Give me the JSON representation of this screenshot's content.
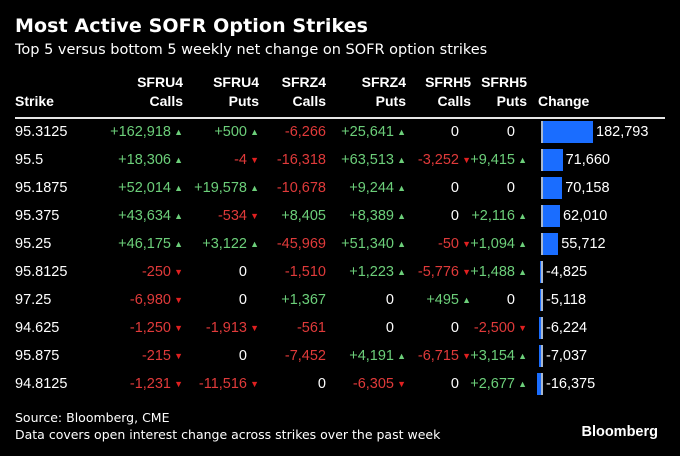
{
  "chart_data": {
    "type": "table",
    "title": "Most Active SOFR Option Strikes",
    "subtitle": "Top 5 versus bottom 5 weekly net change on SOFR option strikes",
    "columns": [
      {
        "top": "",
        "bottom": "Strike"
      },
      {
        "top": "SFRU4",
        "bottom": "Calls"
      },
      {
        "top": "SFRU4",
        "bottom": "Puts"
      },
      {
        "top": "SFRZ4",
        "bottom": "Calls"
      },
      {
        "top": "SFRZ4",
        "bottom": "Puts"
      },
      {
        "top": "SFRH5",
        "bottom": "Calls"
      },
      {
        "top": "SFRH5",
        "bottom": "Puts"
      },
      {
        "top": "",
        "bottom": "Change"
      }
    ],
    "rows": [
      {
        "strike": "95.3125",
        "values": [
          "+162,918",
          "+500",
          "-6,266",
          "+25,641",
          "0",
          "0"
        ],
        "change_label": "182,793",
        "change": 182793
      },
      {
        "strike": "95.5",
        "values": [
          "+18,306",
          "-4",
          "-16,318",
          "+63,513",
          "-3,252",
          "+9,415"
        ],
        "change_label": "71,660",
        "change": 71660
      },
      {
        "strike": "95.1875",
        "values": [
          "+52,014",
          "+19,578",
          "-10,678",
          "+9,244",
          "0",
          "0"
        ],
        "change_label": "70,158",
        "change": 70158
      },
      {
        "strike": "95.375",
        "values": [
          "+43,634",
          "-534",
          "+8,405",
          "+8,389",
          "0",
          "+2,116"
        ],
        "change_label": "62,010",
        "change": 62010
      },
      {
        "strike": "95.25",
        "values": [
          "+46,175",
          "+3,122",
          "-45,969",
          "+51,340",
          "-50",
          "+1,094"
        ],
        "change_label": "55,712",
        "change": 55712
      },
      {
        "strike": "95.8125",
        "values": [
          "-250",
          "0",
          "-1,510",
          "+1,223",
          "-5,776",
          "+1,488"
        ],
        "change_label": "-4,825",
        "change": -4825
      },
      {
        "strike": "97.25",
        "values": [
          "-6,980",
          "0",
          "+1,367",
          "0",
          "+495",
          "0"
        ],
        "change_label": "-5,118",
        "change": -5118
      },
      {
        "strike": "94.625",
        "values": [
          "-1,250",
          "-1,913",
          "-561",
          "0",
          "0",
          "-2,500"
        ],
        "change_label": "-6,224",
        "change": -6224
      },
      {
        "strike": "95.875",
        "values": [
          "-215",
          "0",
          "-7,452",
          "+4,191",
          "-6,715",
          "+3,154"
        ],
        "change_label": "-7,037",
        "change": -7037
      },
      {
        "strike": "94.8125",
        "values": [
          "-1,231",
          "-11,516",
          "0",
          "-6,305",
          "0",
          "+2,677"
        ],
        "change_label": "-16,375",
        "change": -16375
      }
    ],
    "arrow_columns": [
      true,
      true,
      false,
      true,
      true,
      true
    ],
    "colors": {
      "positive": "#6ccf7a",
      "negative": "#e03a3a",
      "bar": "#1a6dff",
      "axis": "#aab8cc"
    }
  },
  "footer": {
    "source": "Source: Bloomberg, CME",
    "note": "Data covers open interest change across strikes over the past week",
    "brand": "Bloomberg"
  },
  "icons": {
    "up": "triangle-up-icon",
    "down": "triangle-down-icon"
  }
}
